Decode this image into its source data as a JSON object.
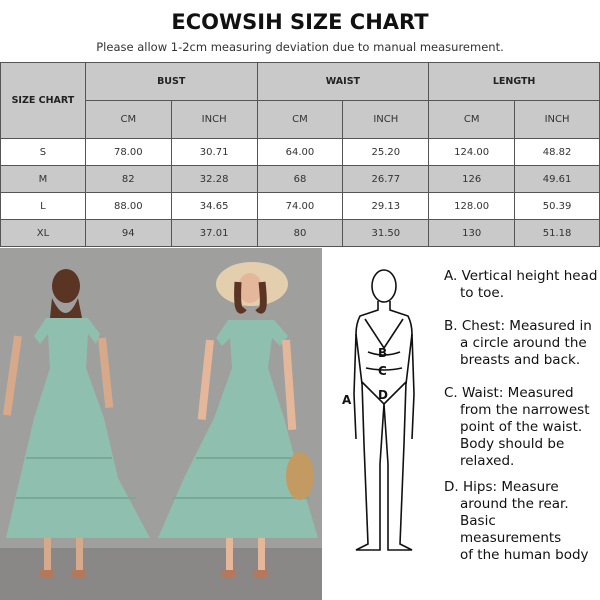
{
  "title": "ECOWSIH SIZE CHART",
  "subtitle": "Please allow 1-2cm measuring deviation due to manual measurement.",
  "table": {
    "corner": "SIZE CHART",
    "groups": [
      "BUST",
      "WAIST",
      "LENGTH"
    ],
    "units": [
      "CM",
      "INCH",
      "CM",
      "INCH",
      "CM",
      "INCH"
    ],
    "rows": [
      [
        "S",
        "78.00",
        "30.71",
        "64.00",
        "25.20",
        "124.00",
        "48.82"
      ],
      [
        "M",
        "82",
        "32.28",
        "68",
        "26.77",
        "126",
        "49.61"
      ],
      [
        "L",
        "88.00",
        "34.65",
        "74.00",
        "29.13",
        "128.00",
        "50.39"
      ],
      [
        "XL",
        "94",
        "37.01",
        "80",
        "31.50",
        "130",
        "51.18"
      ]
    ]
  },
  "colors": {
    "header_gray": "#c9c9c9",
    "dress_mint": "#8fbfae",
    "wall": "#9a9a98"
  },
  "figure_labels": [
    "A",
    "B",
    "C",
    "D"
  ],
  "descriptions": [
    {
      "first": "A. Vertical height head",
      "rest": [
        "to toe."
      ]
    },
    {
      "first": "B. Chest: Measured in",
      "rest": [
        "a circle around the",
        "breasts and back."
      ]
    },
    {
      "first": "C. Waist: Measured",
      "rest": [
        "from the narrowest",
        "point of the waist.",
        "Body should be",
        "relaxed."
      ]
    },
    {
      "first": "D. Hips: Measure",
      "rest": [
        "around the rear.",
        "Basic measurements",
        "of the human body"
      ]
    }
  ]
}
